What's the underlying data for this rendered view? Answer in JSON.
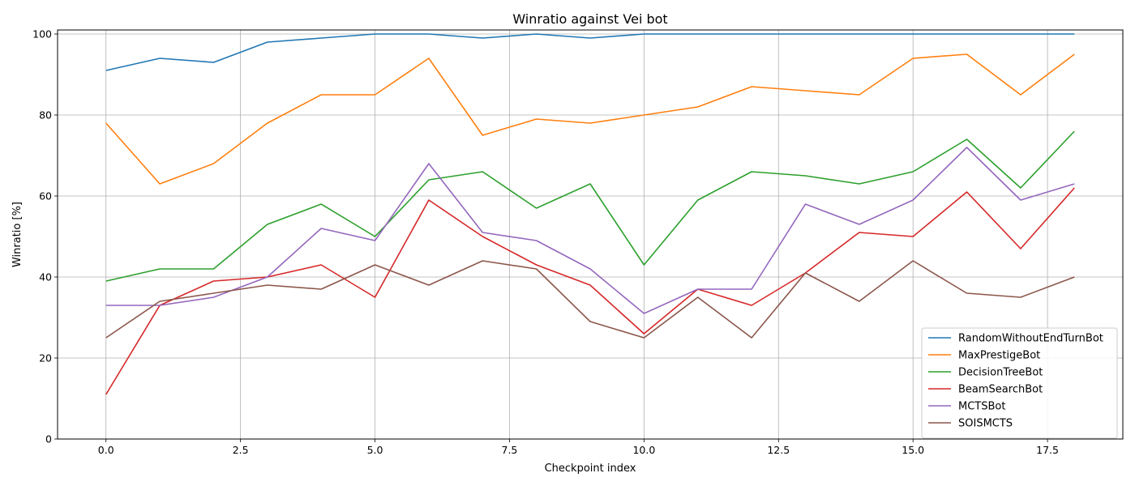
{
  "chart_data": {
    "type": "line",
    "title": "Winratio against Vei bot",
    "xlabel": "Checkpoint index",
    "ylabel": "Winratio [%]",
    "x": [
      0,
      1,
      2,
      3,
      4,
      5,
      6,
      7,
      8,
      9,
      10,
      11,
      12,
      13,
      14,
      15,
      16,
      17,
      18
    ],
    "xlim": [
      -0.9,
      18.9
    ],
    "ylim": [
      0,
      101
    ],
    "xticks": [
      0.0,
      2.5,
      5.0,
      7.5,
      10.0,
      12.5,
      15.0,
      17.5
    ],
    "xtick_labels": [
      "0.0",
      "2.5",
      "5.0",
      "7.5",
      "10.0",
      "12.5",
      "15.0",
      "17.5"
    ],
    "yticks": [
      0,
      20,
      40,
      60,
      80,
      100
    ],
    "ytick_labels": [
      "0",
      "20",
      "40",
      "60",
      "80",
      "100"
    ],
    "grid": true,
    "legend_position": "bottom-right",
    "series": [
      {
        "name": "RandomWithoutEndTurnBot",
        "color": "#1f77b4",
        "values": [
          91,
          94,
          93,
          98,
          99,
          100,
          100,
          99,
          100,
          99,
          100,
          100,
          100,
          100,
          100,
          100,
          100,
          100,
          100
        ]
      },
      {
        "name": "MaxPrestigeBot",
        "color": "#ff7f0e",
        "values": [
          78,
          63,
          68,
          78,
          85,
          85,
          94,
          75,
          79,
          78,
          80,
          82,
          87,
          86,
          85,
          94,
          95,
          85,
          95
        ]
      },
      {
        "name": "DecisionTreeBot",
        "color": "#2ca02c",
        "values": [
          39,
          42,
          42,
          53,
          58,
          50,
          64,
          66,
          57,
          63,
          43,
          59,
          66,
          65,
          63,
          66,
          74,
          62,
          76
        ]
      },
      {
        "name": "BeamSearchBot",
        "color": "#d62728",
        "values": [
          11,
          33,
          39,
          40,
          43,
          35,
          59,
          50,
          43,
          38,
          26,
          37,
          33,
          41,
          51,
          50,
          61,
          47,
          62
        ]
      },
      {
        "name": "MCTSBot",
        "color": "#9467bd",
        "values": [
          33,
          33,
          35,
          40,
          52,
          49,
          68,
          51,
          49,
          42,
          31,
          37,
          37,
          58,
          53,
          59,
          72,
          59,
          63
        ]
      },
      {
        "name": "SOISMCTS",
        "color": "#8c564b",
        "values": [
          25,
          34,
          36,
          38,
          37,
          43,
          38,
          44,
          42,
          29,
          25,
          35,
          25,
          41,
          34,
          44,
          36,
          35,
          40
        ]
      }
    ]
  }
}
